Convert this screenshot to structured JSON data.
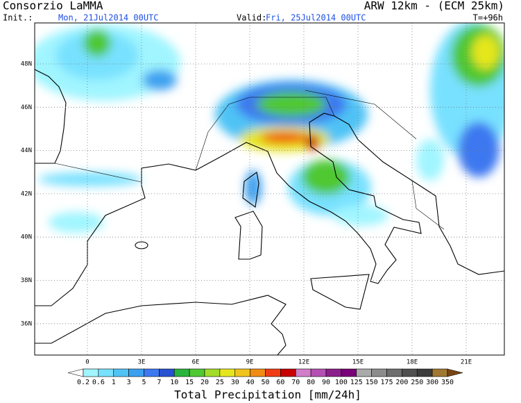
{
  "header": {
    "title": "Consorzio LaMMA",
    "model": "ARW 12km - (ECM 25km)",
    "init_label": "Init.:",
    "init": "Mon, 21Jul2014 00UTC",
    "valid_label": "Valid:",
    "valid": "Fri, 25Jul2014 00UTC",
    "lead": "T=+96h"
  },
  "map": {
    "lat_labels": [
      "48N",
      "46N",
      "44N",
      "42N",
      "40N",
      "38N",
      "36N"
    ],
    "lon_labels": [
      "0",
      "3E",
      "6E",
      "9E",
      "12E",
      "15E",
      "18E",
      "21E"
    ]
  },
  "colorbar": {
    "labels": [
      "0.2",
      "0.6",
      "1",
      "3",
      "5",
      "7",
      "10",
      "15",
      "20",
      "25",
      "30",
      "40",
      "50",
      "60",
      "70",
      "80",
      "90",
      "100",
      "125",
      "150",
      "175",
      "200",
      "250",
      "300",
      "350"
    ],
    "colors": [
      "#ffffff",
      "#a0f5ff",
      "#78e1ff",
      "#50c3f5",
      "#3ca0f0",
      "#3c78f0",
      "#2850d2",
      "#28b43c",
      "#50c832",
      "#a0dc28",
      "#e6e61e",
      "#f0c31e",
      "#f08c14",
      "#f03c14",
      "#c80000",
      "#d27dc8",
      "#b450b4",
      "#8c1e8c",
      "#780078",
      "#aaaaaa",
      "#8c8c8c",
      "#6e6e6e",
      "#505050",
      "#3c3c3c",
      "#a07832",
      "#784614"
    ],
    "title": "Total Precipitation [mm/24h]"
  }
}
